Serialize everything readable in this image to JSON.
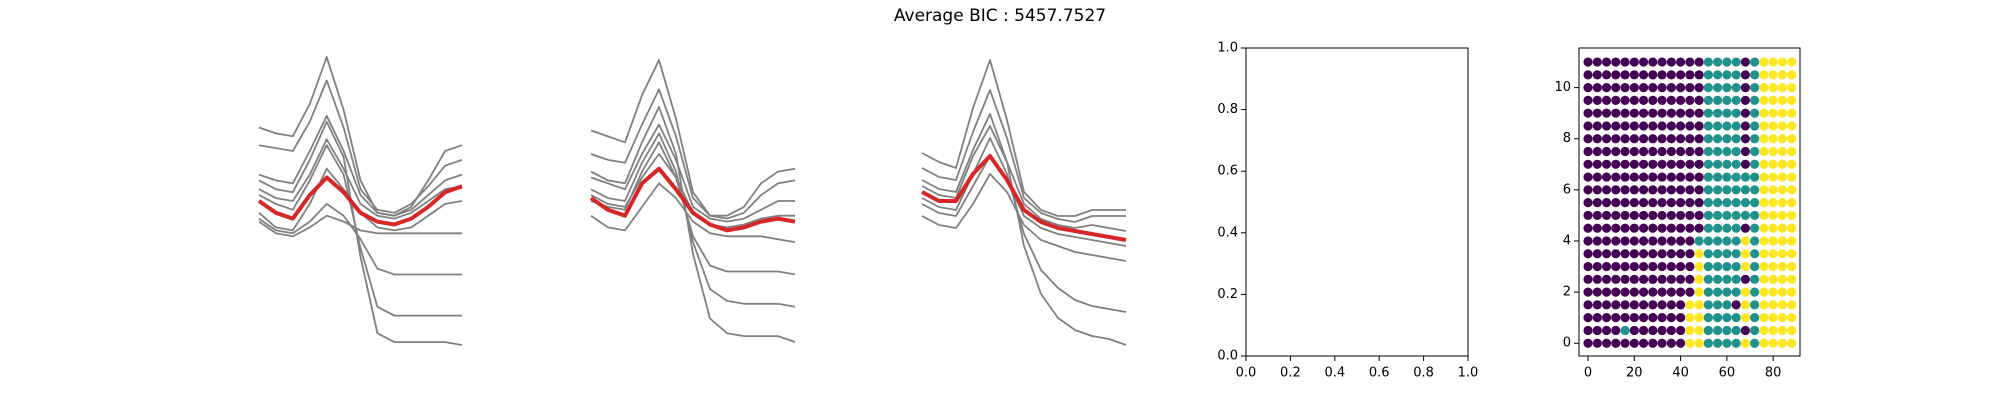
{
  "title": "Average BIC : 5457.7527",
  "chart_data": [
    {
      "type": "line",
      "series": [
        {
          "color": "#808080",
          "values": [
            2.6,
            2.4,
            2.3,
            3.4,
            5.0,
            3.2,
            0.8,
            -0.3,
            -0.4,
            -0.1,
            0.8,
            1.8,
            2.0
          ]
        },
        {
          "color": "#808080",
          "values": [
            2.0,
            1.9,
            1.8,
            2.8,
            4.2,
            2.6,
            0.5,
            -0.2,
            -0.3,
            0,
            0.6,
            1.3,
            1.5
          ]
        },
        {
          "color": "#808080",
          "values": [
            1.0,
            0.8,
            0.7,
            1.8,
            3.0,
            1.8,
            0.3,
            -0.3,
            -0.4,
            -0.2,
            0.3,
            0.8,
            1.0
          ]
        },
        {
          "color": "#808080",
          "values": [
            0.5,
            0.2,
            0.1,
            1.0,
            2.2,
            1.2,
            0,
            -0.4,
            -0.5,
            -0.3,
            0.1,
            0.5,
            0.6
          ]
        },
        {
          "color": "#808080",
          "values": [
            -0.3,
            -0.8,
            -0.9,
            0.0,
            1.2,
            0.5,
            -0.3,
            -0.8,
            -0.9,
            -0.8,
            -0.4,
            0,
            0.1
          ]
        },
        {
          "color": "#808080",
          "values": [
            -0.5,
            -0.9,
            -1.0,
            -0.6,
            0,
            -0.4,
            -1.2,
            -2.2,
            -2.4,
            -2.4,
            -2.4,
            -2.4,
            -2.4
          ]
        },
        {
          "color": "#808080",
          "values": [
            0.3,
            0.0,
            -0.2,
            0.8,
            2.0,
            1.0,
            -1.5,
            -3.5,
            -3.8,
            -3.8,
            -3.8,
            -3.8,
            -3.8
          ]
        },
        {
          "color": "#808080",
          "values": [
            0.8,
            0.5,
            0.4,
            1.5,
            2.8,
            1.6,
            -1.8,
            -4.4,
            -4.7,
            -4.7,
            -4.7,
            -4.7,
            -4.8
          ]
        },
        {
          "color": "#808080",
          "values": [
            -0.6,
            -1.0,
            -1.1,
            -0.8,
            -0.4,
            -0.6,
            -0.9,
            -1.0,
            -1.0,
            -1.0,
            -1.0,
            -1.0,
            -1.0
          ]
        },
        {
          "color": "#d62728",
          "values": [
            0.1,
            -0.3,
            -0.5,
            0.3,
            0.9,
            0.4,
            -0.3,
            -0.6,
            -0.7,
            -0.5,
            -0.1,
            0.4,
            0.6
          ]
        }
      ]
    },
    {
      "type": "line",
      "series": [
        {
          "color": "#808080",
          "values": [
            2.6,
            2.4,
            2.2,
            3.8,
            5.0,
            3.0,
            0.5,
            -0.3,
            -0.3,
            0,
            0.8,
            1.2,
            1.3
          ]
        },
        {
          "color": "#808080",
          "values": [
            1.8,
            1.6,
            1.5,
            2.8,
            4.0,
            2.4,
            0.3,
            -0.3,
            -0.4,
            -0.2,
            0.4,
            0.8,
            0.9
          ]
        },
        {
          "color": "#808080",
          "values": [
            1.0,
            0.8,
            0.6,
            1.8,
            2.8,
            1.6,
            0,
            -0.4,
            -0.5,
            -0.4,
            -0.1,
            0.2,
            0.2
          ]
        },
        {
          "color": "#808080",
          "values": [
            0.4,
            0.1,
            0,
            1.0,
            1.8,
            1.0,
            -0.2,
            -0.6,
            -0.7,
            -0.6,
            -0.4,
            -0.3,
            -0.3
          ]
        },
        {
          "color": "#808080",
          "values": [
            -0.3,
            -0.7,
            -0.8,
            0,
            0.8,
            0.3,
            -0.5,
            -0.9,
            -1.0,
            -1.0,
            -1.0,
            -1.1,
            -1.2
          ]
        },
        {
          "color": "#808080",
          "values": [
            0.6,
            0.3,
            0.2,
            1.5,
            2.5,
            1.2,
            -1.2,
            -2.8,
            -3.2,
            -3.3,
            -3.3,
            -3.3,
            -3.4
          ]
        },
        {
          "color": "#808080",
          "values": [
            1.2,
            0.9,
            0.8,
            2.2,
            3.4,
            1.8,
            -1.6,
            -3.8,
            -4.3,
            -4.4,
            -4.4,
            -4.4,
            -4.6
          ]
        },
        {
          "color": "#808080",
          "values": [
            0.2,
            0,
            -0.1,
            1.2,
            2.2,
            1.0,
            -1.0,
            -2.0,
            -2.2,
            -2.2,
            -2.2,
            -2.2,
            -2.3
          ]
        },
        {
          "color": "#d62728",
          "values": [
            0.3,
            -0.1,
            -0.3,
            0.8,
            1.3,
            0.6,
            -0.2,
            -0.6,
            -0.8,
            -0.7,
            -0.5,
            -0.4,
            -0.5
          ]
        }
      ]
    },
    {
      "type": "line",
      "series": [
        {
          "color": "#808080",
          "values": [
            1.9,
            1.6,
            1.4,
            3.4,
            5.0,
            3.0,
            0.6,
            0,
            -0.2,
            -0.2,
            0,
            0,
            0
          ]
        },
        {
          "color": "#808080",
          "values": [
            1.4,
            1.1,
            1.0,
            2.6,
            4.0,
            2.4,
            0.4,
            -0.1,
            -0.3,
            -0.4,
            -0.2,
            -0.2,
            -0.2
          ]
        },
        {
          "color": "#808080",
          "values": [
            0.8,
            0.5,
            0.4,
            1.8,
            2.8,
            1.6,
            0.2,
            -0.3,
            -0.5,
            -0.6,
            -0.5,
            -0.6,
            -0.7
          ]
        },
        {
          "color": "#808080",
          "values": [
            0.2,
            -0.1,
            -0.2,
            0.8,
            1.8,
            1.0,
            -0.2,
            -0.6,
            -0.8,
            -0.9,
            -1.0,
            -1.1,
            -1.2
          ]
        },
        {
          "color": "#808080",
          "values": [
            0.4,
            0.1,
            0,
            1.2,
            2.4,
            1.2,
            -0.8,
            -2.0,
            -2.6,
            -3.0,
            -3.2,
            -3.3,
            -3.4
          ]
        },
        {
          "color": "#808080",
          "values": [
            1.0,
            0.7,
            0.6,
            2.0,
            3.2,
            1.6,
            -1.2,
            -2.8,
            -3.6,
            -4.0,
            -4.2,
            -4.3,
            -4.5
          ]
        },
        {
          "color": "#808080",
          "values": [
            -0.2,
            -0.5,
            -0.6,
            0.2,
            1.2,
            0.6,
            -0.5,
            -1.0,
            -1.2,
            -1.4,
            -1.5,
            -1.6,
            -1.7
          ]
        },
        {
          "color": "#d62728",
          "values": [
            0.6,
            0.3,
            0.3,
            1.2,
            1.8,
            1.0,
            0,
            -0.4,
            -0.6,
            -0.7,
            -0.8,
            -0.9,
            -1.0
          ]
        }
      ]
    },
    {
      "type": "empty",
      "xlim": [
        0,
        1
      ],
      "ylim": [
        0,
        1
      ],
      "xticks": [
        {
          "value": 0,
          "label": "0.0"
        },
        {
          "value": 0.2,
          "label": "0.2"
        },
        {
          "value": 0.4,
          "label": "0.4"
        },
        {
          "value": 0.6,
          "label": "0.6"
        },
        {
          "value": 0.8,
          "label": "0.8"
        },
        {
          "value": 1,
          "label": "1.0"
        }
      ],
      "yticks": [
        {
          "value": 0,
          "label": "0.0"
        },
        {
          "value": 0.2,
          "label": "0.2"
        },
        {
          "value": 0.4,
          "label": "0.4"
        },
        {
          "value": 0.6,
          "label": "0.6"
        },
        {
          "value": 0.8,
          "label": "0.8"
        },
        {
          "value": 1,
          "label": "1.0"
        }
      ]
    },
    {
      "type": "grid-scatter",
      "xlim": [
        -3.9,
        91.6
      ],
      "ylim": [
        -0.5,
        11.55
      ],
      "xticks": [
        0,
        20,
        40,
        60,
        80
      ],
      "yticks": [
        0,
        2,
        4,
        6,
        8,
        10
      ],
      "colors": [
        "#440154",
        "#21918c",
        "#fde725"
      ],
      "x": [
        0,
        4,
        8,
        12,
        16,
        20,
        24,
        28,
        32,
        36,
        40,
        44,
        48,
        52,
        56,
        60,
        64,
        68,
        72,
        76,
        80,
        84,
        88
      ],
      "y": [
        0,
        0.5,
        1,
        1.5,
        2,
        2.5,
        3,
        3.5,
        4,
        4.5,
        5,
        5.5,
        6,
        6.5,
        7,
        7.5,
        8,
        8.5,
        9,
        9.5,
        10,
        10.5,
        11
      ],
      "labels": [
        [
          0,
          0,
          0,
          0,
          0,
          0,
          0,
          0,
          0,
          0,
          0,
          2,
          2,
          1,
          1,
          1,
          1,
          2,
          1,
          2,
          2,
          2,
          2
        ],
        [
          0,
          0,
          0,
          0,
          1,
          0,
          0,
          0,
          0,
          0,
          0,
          2,
          2,
          1,
          1,
          1,
          1,
          0,
          1,
          2,
          2,
          2,
          2
        ],
        [
          0,
          0,
          0,
          0,
          0,
          0,
          0,
          0,
          0,
          0,
          0,
          2,
          2,
          1,
          1,
          1,
          1,
          2,
          1,
          2,
          2,
          2,
          2
        ],
        [
          0,
          0,
          0,
          0,
          0,
          0,
          0,
          0,
          0,
          0,
          0,
          2,
          2,
          1,
          1,
          1,
          0,
          2,
          1,
          2,
          2,
          2,
          2
        ],
        [
          0,
          0,
          0,
          0,
          0,
          0,
          0,
          0,
          0,
          0,
          0,
          0,
          2,
          1,
          1,
          1,
          1,
          2,
          1,
          2,
          2,
          2,
          2
        ],
        [
          0,
          0,
          0,
          0,
          0,
          0,
          0,
          0,
          0,
          0,
          0,
          0,
          2,
          1,
          1,
          1,
          1,
          0,
          1,
          2,
          2,
          2,
          2
        ],
        [
          0,
          0,
          0,
          0,
          0,
          0,
          0,
          0,
          0,
          0,
          0,
          0,
          2,
          1,
          1,
          1,
          1,
          2,
          1,
          2,
          2,
          2,
          2
        ],
        [
          0,
          0,
          0,
          0,
          0,
          0,
          0,
          0,
          0,
          0,
          0,
          0,
          2,
          1,
          1,
          1,
          1,
          2,
          1,
          2,
          2,
          2,
          2
        ],
        [
          0,
          0,
          0,
          0,
          0,
          0,
          0,
          0,
          0,
          0,
          0,
          0,
          1,
          1,
          1,
          1,
          1,
          2,
          1,
          2,
          2,
          2,
          2
        ],
        [
          0,
          0,
          0,
          0,
          0,
          0,
          0,
          0,
          0,
          0,
          0,
          0,
          0,
          1,
          1,
          1,
          1,
          0,
          1,
          2,
          2,
          2,
          2
        ],
        [
          0,
          0,
          0,
          0,
          0,
          0,
          0,
          0,
          0,
          0,
          0,
          0,
          0,
          1,
          1,
          1,
          1,
          1,
          1,
          2,
          2,
          2,
          2
        ],
        [
          0,
          0,
          0,
          0,
          0,
          0,
          0,
          0,
          0,
          0,
          0,
          0,
          0,
          1,
          1,
          1,
          1,
          1,
          1,
          2,
          2,
          2,
          2
        ],
        [
          0,
          0,
          0,
          0,
          0,
          0,
          0,
          0,
          0,
          0,
          0,
          0,
          0,
          1,
          1,
          1,
          1,
          1,
          1,
          2,
          2,
          2,
          2
        ],
        [
          0,
          0,
          0,
          0,
          0,
          0,
          0,
          0,
          0,
          0,
          0,
          0,
          0,
          1,
          1,
          1,
          1,
          1,
          1,
          2,
          2,
          2,
          2
        ],
        [
          0,
          0,
          0,
          0,
          0,
          0,
          0,
          0,
          0,
          0,
          0,
          0,
          0,
          1,
          1,
          1,
          1,
          0,
          1,
          2,
          2,
          2,
          2
        ],
        [
          0,
          0,
          0,
          0,
          0,
          0,
          0,
          0,
          0,
          0,
          0,
          0,
          0,
          1,
          1,
          1,
          1,
          0,
          1,
          2,
          2,
          2,
          2
        ],
        [
          0,
          0,
          0,
          0,
          0,
          0,
          0,
          0,
          0,
          0,
          0,
          0,
          0,
          1,
          1,
          1,
          1,
          0,
          1,
          2,
          2,
          2,
          2
        ],
        [
          0,
          0,
          0,
          0,
          0,
          0,
          0,
          0,
          0,
          0,
          0,
          0,
          0,
          1,
          1,
          1,
          1,
          0,
          1,
          2,
          2,
          2,
          2
        ],
        [
          0,
          0,
          0,
          0,
          0,
          0,
          0,
          0,
          0,
          0,
          0,
          0,
          0,
          1,
          1,
          1,
          1,
          0,
          1,
          2,
          2,
          2,
          2
        ],
        [
          0,
          0,
          0,
          0,
          0,
          0,
          0,
          0,
          0,
          0,
          0,
          0,
          0,
          1,
          1,
          1,
          1,
          0,
          1,
          2,
          2,
          2,
          2
        ],
        [
          0,
          0,
          0,
          0,
          0,
          0,
          0,
          0,
          0,
          0,
          0,
          0,
          0,
          1,
          1,
          1,
          1,
          0,
          1,
          2,
          2,
          2,
          2
        ],
        [
          0,
          0,
          0,
          0,
          0,
          0,
          0,
          0,
          0,
          0,
          0,
          0,
          0,
          1,
          1,
          1,
          1,
          0,
          1,
          2,
          2,
          2,
          2
        ],
        [
          0,
          0,
          0,
          0,
          0,
          0,
          0,
          0,
          0,
          0,
          0,
          0,
          0,
          1,
          1,
          1,
          1,
          0,
          1,
          2,
          2,
          2,
          2
        ]
      ]
    }
  ]
}
